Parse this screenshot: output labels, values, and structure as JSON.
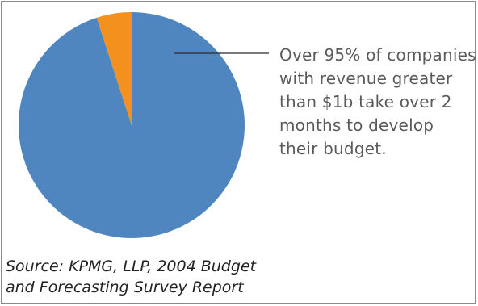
{
  "chart_data": {
    "type": "pie",
    "title": "",
    "slices": [
      {
        "label": "",
        "value": 95,
        "color": "#4f86bf"
      },
      {
        "label": "",
        "value": 5,
        "color": "#f4901e"
      }
    ],
    "annotation": {
      "lines": [
        "Over 95% of companies",
        "with revenue greater",
        "than $1b take over 2",
        "months to develop",
        "their budget."
      ],
      "points_to_slice": 0
    },
    "source": {
      "lines": [
        "Source:  KPMG, LLP, 2004 Budget",
        "and Forecasting Survey Report"
      ]
    },
    "legend": "none"
  }
}
